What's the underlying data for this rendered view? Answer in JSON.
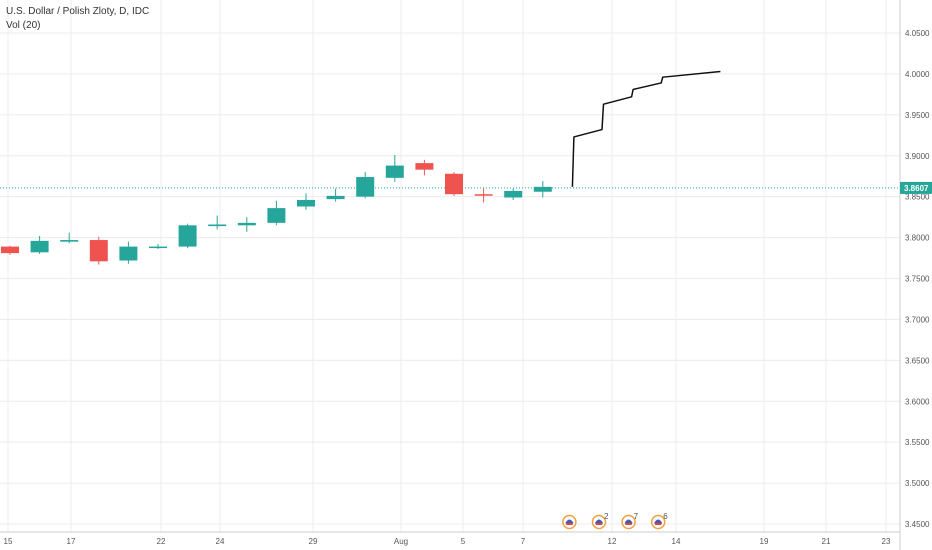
{
  "legend": {
    "symbol_line": "U.S. Dollar / Polish Zloty, D, IDC",
    "indicator_line": "Vol (20)"
  },
  "colors": {
    "up": "#26a69a",
    "down": "#ef5350",
    "price_line": "#26a69a",
    "grid": "#ececec",
    "drawing": "#111111"
  },
  "chart_data": {
    "type": "candlestick",
    "x_tick_labels": [
      "15",
      "17",
      "22",
      "24",
      "29",
      "Aug",
      "5",
      "7",
      "12",
      "14",
      "19",
      "21",
      "23"
    ],
    "y_tick_labels": [
      "4.0500",
      "4.0000",
      "3.9500",
      "3.9000",
      "3.8500",
      "3.8000",
      "3.7500",
      "3.7000",
      "3.6500",
      "3.6000",
      "3.5500",
      "3.5000",
      "3.4500"
    ],
    "ylim": [
      3.44,
      4.09
    ],
    "current_price": "3.8607",
    "grid": true,
    "candles": [
      {
        "date": "Jul 15",
        "open": 3.789,
        "high": 3.79,
        "low": 3.779,
        "close": 3.781
      },
      {
        "date": "Jul 16",
        "open": 3.782,
        "high": 3.802,
        "low": 3.78,
        "close": 3.796
      },
      {
        "date": "Jul 17",
        "open": 3.795,
        "high": 3.806,
        "low": 3.793,
        "close": 3.797
      },
      {
        "date": "Jul 18",
        "open": 3.797,
        "high": 3.801,
        "low": 3.767,
        "close": 3.771
      },
      {
        "date": "Jul 19",
        "open": 3.772,
        "high": 3.795,
        "low": 3.768,
        "close": 3.789
      },
      {
        "date": "Jul 22",
        "open": 3.788,
        "high": 3.792,
        "low": 3.786,
        "close": 3.789
      },
      {
        "date": "Jul 23",
        "open": 3.789,
        "high": 3.817,
        "low": 3.787,
        "close": 3.815
      },
      {
        "date": "Jul 24",
        "open": 3.814,
        "high": 3.827,
        "low": 3.81,
        "close": 3.816
      },
      {
        "date": "Jul 25",
        "open": 3.815,
        "high": 3.825,
        "low": 3.807,
        "close": 3.818
      },
      {
        "date": "Jul 26",
        "open": 3.818,
        "high": 3.845,
        "low": 3.815,
        "close": 3.836
      },
      {
        "date": "Jul 29",
        "open": 3.838,
        "high": 3.854,
        "low": 3.834,
        "close": 3.846
      },
      {
        "date": "Jul 30",
        "open": 3.847,
        "high": 3.86,
        "low": 3.844,
        "close": 3.851
      },
      {
        "date": "Jul 31",
        "open": 3.85,
        "high": 3.88,
        "low": 3.848,
        "close": 3.874
      },
      {
        "date": "Aug 1",
        "open": 3.873,
        "high": 3.901,
        "low": 3.868,
        "close": 3.888
      },
      {
        "date": "Aug 2",
        "open": 3.891,
        "high": 3.895,
        "low": 3.876,
        "close": 3.883
      },
      {
        "date": "Aug 5",
        "open": 3.878,
        "high": 3.88,
        "low": 3.851,
        "close": 3.853
      },
      {
        "date": "Aug 6",
        "open": 3.853,
        "high": 3.86,
        "low": 3.843,
        "close": 3.852
      },
      {
        "date": "Aug 7",
        "open": 3.849,
        "high": 3.86,
        "low": 3.846,
        "close": 3.857
      },
      {
        "date": "Aug 8",
        "open": 3.856,
        "high": 3.869,
        "low": 3.849,
        "close": 3.862
      }
    ],
    "projection_path": [
      {
        "date": "Aug 9",
        "price": 3.862
      },
      {
        "date": "Aug 9",
        "price": 3.923
      },
      {
        "date": "Aug 12",
        "price": 3.932
      },
      {
        "date": "Aug 12",
        "price": 3.963
      },
      {
        "date": "Aug 13",
        "price": 3.972
      },
      {
        "date": "Aug 13",
        "price": 3.981
      },
      {
        "date": "Aug 14",
        "price": 3.989
      },
      {
        "date": "Aug 14",
        "price": 3.996
      },
      {
        "date": "Aug 16",
        "price": 4.003
      }
    ],
    "events": [
      {
        "date": "Aug 9",
        "count": ""
      },
      {
        "date": "Aug 12",
        "count": "2"
      },
      {
        "date": "Aug 13",
        "count": "7"
      },
      {
        "date": "Aug 14",
        "count": "6"
      }
    ]
  }
}
